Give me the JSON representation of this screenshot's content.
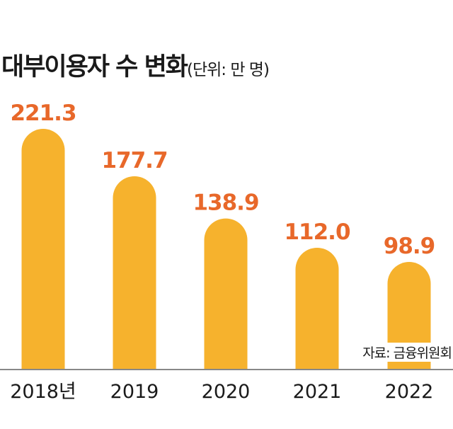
{
  "chart_data": {
    "type": "bar",
    "title": "대부이용자 수 변화",
    "unit_note": "(단위: 만 명)",
    "categories": [
      "2018년",
      "2019",
      "2020",
      "2021",
      "2022"
    ],
    "values": [
      221.3,
      177.7,
      138.9,
      112.0,
      98.9
    ],
    "value_labels": [
      "221.3",
      "177.7",
      "138.9",
      "112.0",
      "98.9"
    ],
    "ylim": [
      0,
      221.3
    ],
    "grid": false,
    "source": "자료: 금융위원회",
    "colors": {
      "bar": "#f6b22d",
      "value_label": "#e8682a",
      "axis": "#888888"
    }
  }
}
